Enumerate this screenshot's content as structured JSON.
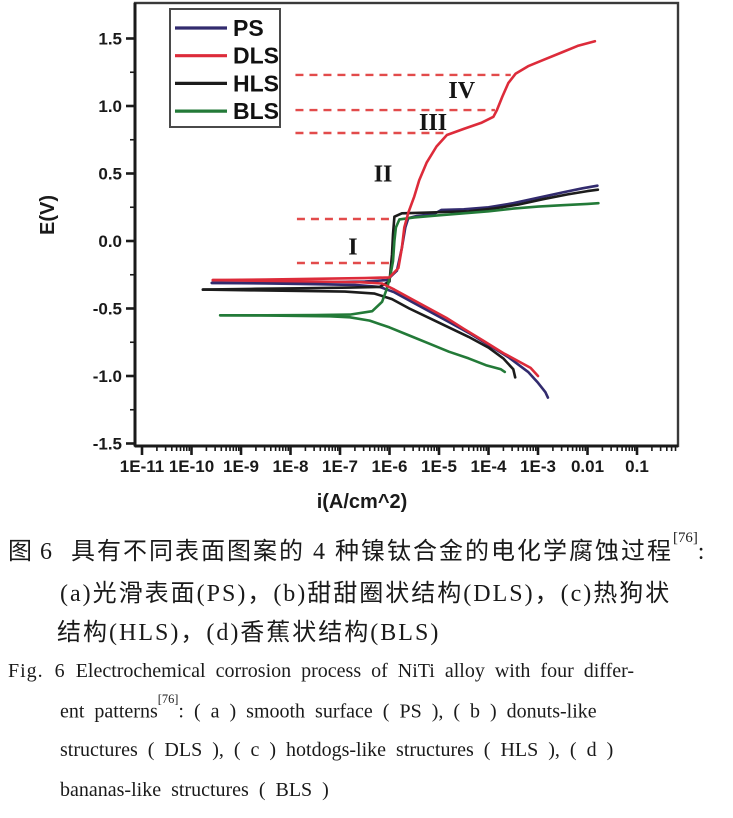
{
  "figure": {
    "caption_cn": {
      "label": "图 6",
      "line1_pre": "具有不同表面图案的 4 种镍钛合金的电化学腐蚀过程",
      "line1_sup": "[76]",
      "line1_post": ":",
      "line2": "(a)光滑表面(PS)，(b)甜甜圈状结构(DLS)，(c)热狗状",
      "line3": "结构(HLS)，(d)香蕉状结构(BLS)"
    },
    "caption_en": {
      "label": "Fig. 6",
      "line1": "Electrochemical corrosion process of NiTi alloy with four differ-",
      "line2_pre": "ent patterns",
      "line2_sup": "[76]",
      "line2_post": ": ( a ) smooth surface ( PS ), ( b ) donuts-like",
      "line3": "structures ( DLS ), ( c ) hotdogs-like structures ( HLS ), ( d )",
      "line4": "bananas-like structures ( BLS )"
    }
  },
  "chart_data": {
    "type": "line",
    "title": "",
    "xlabel": "i(A/cm^2)",
    "ylabel": "E(V)",
    "x_scale": "log10",
    "xlim": [
      -11.15,
      -0.17
    ],
    "ylim": [
      -1.52,
      1.76
    ],
    "grid": false,
    "x_ticks": [
      {
        "label": "1E-11",
        "logi": -11
      },
      {
        "label": "1E-10",
        "logi": -10
      },
      {
        "label": "1E-9",
        "logi": -9
      },
      {
        "label": "1E-8",
        "logi": -8
      },
      {
        "label": "1E-7",
        "logi": -7
      },
      {
        "label": "1E-6",
        "logi": -6
      },
      {
        "label": "1E-5",
        "logi": -5
      },
      {
        "label": "1E-4",
        "logi": -4
      },
      {
        "label": "1E-3",
        "logi": -3
      },
      {
        "label": "0.01",
        "logi": -2
      },
      {
        "label": "0.1",
        "logi": -1
      }
    ],
    "y_ticks": [
      {
        "label": "1.5",
        "E": 1.5
      },
      {
        "label": "1.0",
        "E": 1.0
      },
      {
        "label": "0.5",
        "E": 0.5
      },
      {
        "label": "0.0",
        "E": 0.0
      },
      {
        "label": "-0.5",
        "E": -0.5
      },
      {
        "label": "-1.0",
        "E": -1.0
      },
      {
        "label": "-1.5",
        "E": -1.5
      }
    ],
    "legend": {
      "position": "top-left",
      "items": [
        {
          "name": "PS",
          "color": "#322b6e"
        },
        {
          "name": "DLS",
          "color": "#dd2b3a"
        },
        {
          "name": "HLS",
          "color": "#1c1c1c"
        },
        {
          "name": "BLS",
          "color": "#237a38"
        }
      ]
    },
    "dashed_guides": {
      "color": "#e24b4b",
      "lines": [
        {
          "E": 1.23,
          "from": -7.9,
          "to": -3.55
        },
        {
          "E": 0.97,
          "from": -7.9,
          "to": -3.87
        },
        {
          "E": 0.8,
          "from": -7.9,
          "to": -4.85
        },
        {
          "E": 0.163,
          "from": -7.87,
          "to": -5.95
        },
        {
          "E": -0.163,
          "from": -7.87,
          "to": -5.95
        }
      ]
    },
    "region_labels": [
      {
        "label": "I",
        "logi": -6.74,
        "E": -0.04
      },
      {
        "label": "II",
        "logi": -6.13,
        "E": 0.5
      },
      {
        "label": "III",
        "logi": -5.12,
        "E": 0.88
      },
      {
        "label": "IV",
        "logi": -4.54,
        "E": 1.12
      }
    ],
    "series": [
      {
        "name": "PS",
        "color": "#322b6e",
        "anodic": [
          [
            -9.59,
            -0.31
          ],
          [
            -8.5,
            -0.31
          ],
          [
            -7.5,
            -0.305
          ],
          [
            -6.5,
            -0.3
          ],
          [
            -6.05,
            -0.29
          ],
          [
            -5.85,
            -0.22
          ],
          [
            -5.75,
            -0.05
          ],
          [
            -5.68,
            0.1
          ],
          [
            -5.62,
            0.17
          ],
          [
            -5.45,
            0.185
          ],
          [
            -5.1,
            0.2
          ],
          [
            -4.95,
            0.23
          ],
          [
            -4.5,
            0.235
          ],
          [
            -4.0,
            0.25
          ],
          [
            -3.5,
            0.28
          ],
          [
            -3.0,
            0.32
          ],
          [
            -2.5,
            0.36
          ],
          [
            -2.1,
            0.39
          ],
          [
            -1.8,
            0.41
          ]
        ],
        "cathodic": [
          [
            -9.59,
            -0.31
          ],
          [
            -8.5,
            -0.315
          ],
          [
            -7.5,
            -0.32
          ],
          [
            -6.7,
            -0.325
          ],
          [
            -6.2,
            -0.34
          ],
          [
            -5.9,
            -0.38
          ],
          [
            -5.55,
            -0.45
          ],
          [
            -5.2,
            -0.52
          ],
          [
            -4.8,
            -0.6
          ],
          [
            -4.4,
            -0.68
          ],
          [
            -4.0,
            -0.77
          ],
          [
            -3.6,
            -0.86
          ],
          [
            -3.2,
            -0.97
          ],
          [
            -3.0,
            -1.05
          ],
          [
            -2.85,
            -1.12
          ],
          [
            -2.8,
            -1.16
          ]
        ]
      },
      {
        "name": "HLS",
        "color": "#1c1c1c",
        "anodic": [
          [
            -9.77,
            -0.36
          ],
          [
            -8.8,
            -0.355
          ],
          [
            -7.8,
            -0.35
          ],
          [
            -6.8,
            -0.345
          ],
          [
            -6.2,
            -0.34
          ],
          [
            -6.0,
            -0.3
          ],
          [
            -5.95,
            -0.1
          ],
          [
            -5.93,
            0.05
          ],
          [
            -5.9,
            0.18
          ],
          [
            -5.75,
            0.205
          ],
          [
            -5.3,
            0.21
          ],
          [
            -4.9,
            0.215
          ],
          [
            -4.4,
            0.22
          ],
          [
            -3.9,
            0.24
          ],
          [
            -3.4,
            0.27
          ],
          [
            -2.9,
            0.31
          ],
          [
            -2.4,
            0.345
          ],
          [
            -2.0,
            0.37
          ],
          [
            -1.79,
            0.38
          ]
        ],
        "cathodic": [
          [
            -9.77,
            -0.36
          ],
          [
            -8.8,
            -0.365
          ],
          [
            -7.8,
            -0.37
          ],
          [
            -6.9,
            -0.375
          ],
          [
            -6.3,
            -0.39
          ],
          [
            -5.95,
            -0.43
          ],
          [
            -5.6,
            -0.5
          ],
          [
            -5.2,
            -0.57
          ],
          [
            -4.8,
            -0.64
          ],
          [
            -4.4,
            -0.71
          ],
          [
            -4.0,
            -0.79
          ],
          [
            -3.7,
            -0.87
          ],
          [
            -3.5,
            -0.95
          ],
          [
            -3.46,
            -1.01
          ]
        ]
      },
      {
        "name": "BLS",
        "color": "#237a38",
        "anodic": [
          [
            -9.42,
            -0.55
          ],
          [
            -8.5,
            -0.55
          ],
          [
            -7.5,
            -0.548
          ],
          [
            -6.8,
            -0.545
          ],
          [
            -6.35,
            -0.52
          ],
          [
            -6.15,
            -0.45
          ],
          [
            -6.05,
            -0.35
          ],
          [
            -5.98,
            -0.25
          ],
          [
            -5.93,
            -0.15
          ],
          [
            -5.9,
            0.0
          ],
          [
            -5.87,
            0.1
          ],
          [
            -5.8,
            0.16
          ],
          [
            -5.5,
            0.175
          ],
          [
            -5.0,
            0.19
          ],
          [
            -4.5,
            0.205
          ],
          [
            -4.0,
            0.22
          ],
          [
            -3.5,
            0.24
          ],
          [
            -3.0,
            0.255
          ],
          [
            -2.5,
            0.265
          ],
          [
            -2.0,
            0.275
          ],
          [
            -1.78,
            0.28
          ]
        ],
        "cathodic": [
          [
            -9.42,
            -0.55
          ],
          [
            -8.6,
            -0.552
          ],
          [
            -7.8,
            -0.555
          ],
          [
            -7.2,
            -0.558
          ],
          [
            -6.8,
            -0.565
          ],
          [
            -6.4,
            -0.59
          ],
          [
            -6.0,
            -0.64
          ],
          [
            -5.6,
            -0.7
          ],
          [
            -5.2,
            -0.76
          ],
          [
            -4.8,
            -0.82
          ],
          [
            -4.4,
            -0.87
          ],
          [
            -4.05,
            -0.92
          ],
          [
            -3.75,
            -0.95
          ],
          [
            -3.67,
            -0.97
          ]
        ]
      },
      {
        "name": "DLS",
        "color": "#dd2b3a",
        "anodic": [
          [
            -9.57,
            -0.29
          ],
          [
            -8.5,
            -0.285
          ],
          [
            -7.5,
            -0.28
          ],
          [
            -6.5,
            -0.275
          ],
          [
            -6.0,
            -0.27
          ],
          [
            -5.82,
            -0.2
          ],
          [
            -5.75,
            -0.05
          ],
          [
            -5.7,
            0.1
          ],
          [
            -5.62,
            0.21
          ],
          [
            -5.5,
            0.33
          ],
          [
            -5.4,
            0.45
          ],
          [
            -5.25,
            0.58
          ],
          [
            -5.05,
            0.7
          ],
          [
            -4.84,
            0.785
          ],
          [
            -4.5,
            0.83
          ],
          [
            -4.15,
            0.875
          ],
          [
            -3.9,
            0.92
          ],
          [
            -3.83,
            0.97
          ],
          [
            -3.72,
            1.07
          ],
          [
            -3.6,
            1.17
          ],
          [
            -3.45,
            1.24
          ],
          [
            -3.2,
            1.295
          ],
          [
            -2.9,
            1.34
          ],
          [
            -2.5,
            1.4
          ],
          [
            -2.2,
            1.445
          ],
          [
            -1.85,
            1.48
          ]
        ],
        "cathodic": [
          [
            -9.57,
            -0.29
          ],
          [
            -8.5,
            -0.295
          ],
          [
            -7.5,
            -0.3
          ],
          [
            -6.6,
            -0.305
          ],
          [
            -6.15,
            -0.315
          ],
          [
            -5.9,
            -0.36
          ],
          [
            -5.55,
            -0.43
          ],
          [
            -5.2,
            -0.5
          ],
          [
            -4.85,
            -0.57
          ],
          [
            -4.5,
            -0.65
          ],
          [
            -4.1,
            -0.74
          ],
          [
            -3.7,
            -0.83
          ],
          [
            -3.4,
            -0.89
          ],
          [
            -3.15,
            -0.94
          ],
          [
            -3.0,
            -1.0
          ]
        ]
      }
    ]
  }
}
